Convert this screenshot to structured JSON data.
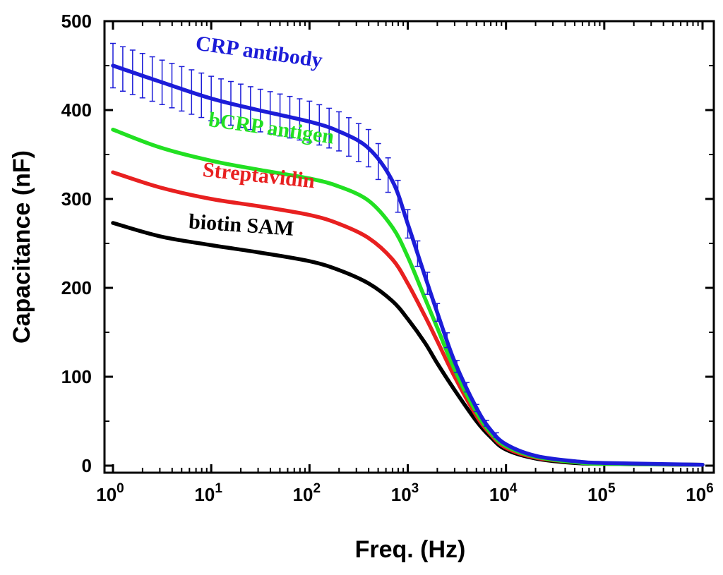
{
  "chart_data": {
    "type": "line",
    "title": "",
    "xlabel": "Freq. (Hz)",
    "ylabel": "Capacitance (nF)",
    "xscale": "log",
    "xlim": [
      1,
      1000000
    ],
    "ylim": [
      -8,
      500
    ],
    "grid": false,
    "x_ticks": [
      {
        "value": 1,
        "base": "10",
        "exp": "0"
      },
      {
        "value": 10,
        "base": "10",
        "exp": "1"
      },
      {
        "value": 100,
        "base": "10",
        "exp": "2"
      },
      {
        "value": 1000,
        "base": "10",
        "exp": "3"
      },
      {
        "value": 10000,
        "base": "10",
        "exp": "4"
      },
      {
        "value": 100000,
        "base": "10",
        "exp": "5"
      },
      {
        "value": 1000000,
        "base": "10",
        "exp": "6"
      }
    ],
    "y_ticks": [
      0,
      100,
      200,
      300,
      400,
      500
    ],
    "y_tick_labels": [
      "0",
      "100",
      "200",
      "300",
      "400",
      "500"
    ],
    "series": [
      {
        "name": "CRP antibody",
        "color": "#1c1cd8",
        "x": [
          1,
          3,
          10,
          30,
          100,
          200,
          400,
          700,
          1000,
          1500,
          2000,
          3000,
          5000,
          7000,
          10000,
          20000,
          50000,
          100000,
          1000000
        ],
        "y": [
          450,
          432,
          413,
          400,
          387,
          376,
          357,
          320,
          272,
          213,
          172,
          117,
          65,
          40,
          24,
          11,
          5,
          3,
          1
        ],
        "error": [
          25,
          25,
          25,
          24,
          23,
          22,
          21,
          19,
          16,
          13,
          10,
          7,
          4,
          3,
          2,
          1,
          1,
          0,
          0
        ]
      },
      {
        "name": "bCRP antigen",
        "color": "#22e022",
        "x": [
          1,
          3,
          10,
          30,
          100,
          200,
          400,
          700,
          1000,
          1500,
          2000,
          3000,
          5000,
          7000,
          10000,
          20000,
          50000,
          100000,
          1000000
        ],
        "y": [
          378,
          358,
          343,
          333,
          323,
          314,
          298,
          268,
          235,
          188,
          155,
          108,
          60,
          37,
          22,
          10,
          4,
          2,
          1
        ],
        "error": []
      },
      {
        "name": "Streptavidin",
        "color": "#e82020",
        "x": [
          1,
          3,
          10,
          30,
          100,
          200,
          400,
          700,
          1000,
          1500,
          2000,
          3000,
          5000,
          7000,
          10000,
          20000,
          50000,
          100000,
          1000000
        ],
        "y": [
          330,
          313,
          300,
          292,
          282,
          272,
          256,
          232,
          205,
          168,
          140,
          100,
          56,
          35,
          20,
          9,
          4,
          2,
          1
        ],
        "error": []
      },
      {
        "name": "biotin SAM",
        "color": "#000000",
        "x": [
          1,
          3,
          10,
          30,
          100,
          200,
          400,
          700,
          1000,
          1500,
          2000,
          3000,
          5000,
          7000,
          10000,
          20000,
          50000,
          100000,
          1000000
        ],
        "y": [
          273,
          258,
          248,
          240,
          230,
          220,
          205,
          185,
          165,
          138,
          115,
          85,
          50,
          32,
          18,
          8,
          3,
          2,
          1
        ],
        "error": []
      }
    ],
    "annotations": [
      {
        "text": "CRP antibody",
        "series": 0,
        "x": 30,
        "y": 458,
        "rotate": 8
      },
      {
        "text": "bCRP antigen",
        "series": 1,
        "x": 40,
        "y": 372,
        "rotate": 8
      },
      {
        "text": "Streptavidin",
        "series": 2,
        "x": 30,
        "y": 319,
        "rotate": 6
      },
      {
        "text": "biotin SAM",
        "series": 3,
        "x": 20,
        "y": 263,
        "rotate": 4
      }
    ]
  }
}
